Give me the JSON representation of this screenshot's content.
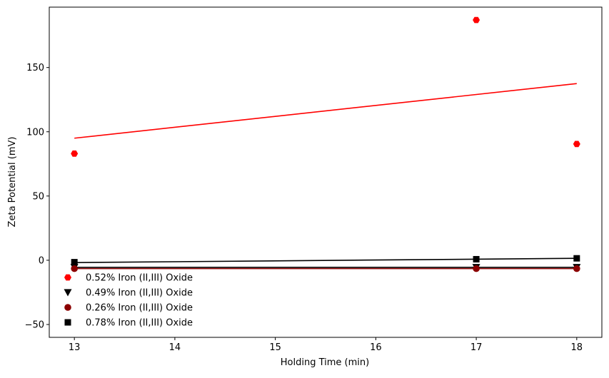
{
  "chart_data": {
    "type": "scatter",
    "title": "",
    "xlabel": "Holding Time (min)",
    "ylabel": "Zeta Potential (mV)",
    "xlim": [
      12.75,
      18.25
    ],
    "ylim": [
      -60,
      197
    ],
    "x_ticks": [
      13,
      14,
      15,
      16,
      17,
      18
    ],
    "y_ticks": [
      -50,
      0,
      50,
      100,
      150
    ],
    "grid": false,
    "legend_position": "lower-left",
    "series": [
      {
        "name": "0.52% Iron (II,III) Oxide",
        "marker": "hexagon",
        "color": "#ff0000",
        "x": [
          13,
          17,
          18
        ],
        "y": [
          83,
          187,
          90.5
        ],
        "trend": {
          "x": [
            13,
            18
          ],
          "y": [
            95,
            137.5
          ]
        }
      },
      {
        "name": "0.49% Iron (II,III) Oxide",
        "marker": "triangle-down",
        "color": "#000000",
        "x": [
          13,
          17,
          18
        ],
        "y": [
          -5.5,
          -5.5,
          -5.5
        ],
        "trend": {
          "x": [
            13,
            18
          ],
          "y": [
            -5.5,
            -5.5
          ]
        }
      },
      {
        "name": "0.26% Iron (II,III) Oxide",
        "marker": "circle",
        "color": "#8b0000",
        "x": [
          13,
          17,
          18
        ],
        "y": [
          -6.5,
          -6.5,
          -6.5
        ],
        "trend": {
          "x": [
            13,
            18
          ],
          "y": [
            -6.5,
            -6.5
          ]
        }
      },
      {
        "name": "0.78% Iron (II,III) Oxide",
        "marker": "square",
        "color": "#000000",
        "x": [
          13,
          17,
          18
        ],
        "y": [
          -1.5,
          0.8,
          1.5
        ],
        "trend": {
          "x": [
            13,
            18
          ],
          "y": [
            -1.8,
            1.5
          ]
        }
      }
    ]
  }
}
